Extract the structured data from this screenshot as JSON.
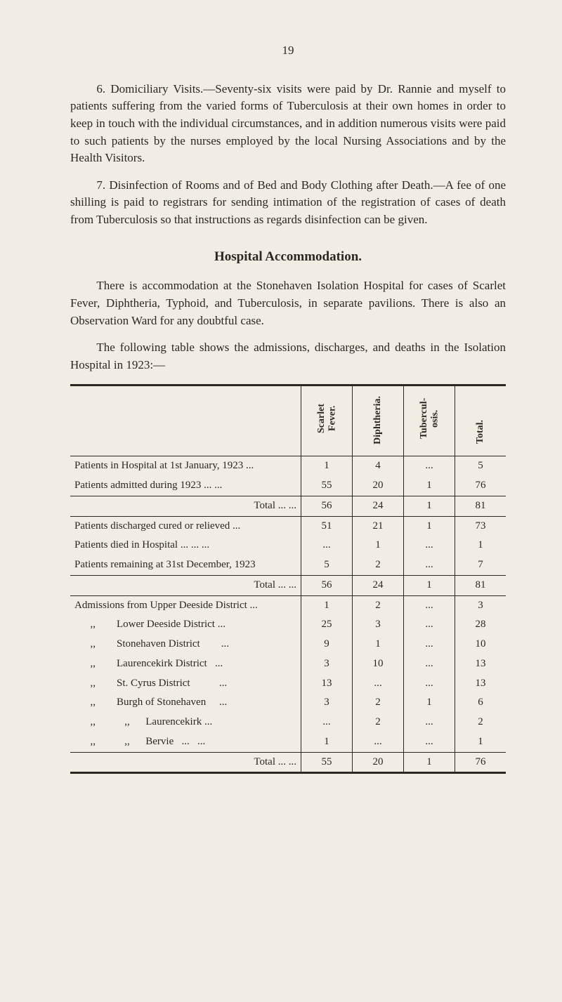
{
  "page_number": "19",
  "paragraphs": {
    "p1": "6. Domiciliary Visits.—Seventy-six visits were paid by Dr. Rannie and myself to patients suffering from the varied forms of Tuberculosis at their own homes in order to keep in touch with the individual circumstances, and in addition numerous visits were paid to such patients by the nurses employed by the local Nursing Associations and by the Health Visitors.",
    "p2": "7. Disinfection of Rooms and of Bed and Body Clothing after Death.—A fee of one shilling is paid to registrars for sending intimation of the registration of cases of death from Tuberculosis so that instructions as regards disinfection can be given.",
    "p3": "There is accommodation at the Stonehaven Isolation Hospital for cases of Scarlet Fever, Diphtheria, Typhoid, and Tuberculosis, in separate pavilions. There is also an Observation Ward for any doubtful case.",
    "p4": "The following table shows the admissions, discharges, and deaths in the Isolation Hospital in 1923:—"
  },
  "section_heading": "Hospital Accommodation.",
  "table": {
    "columns": {
      "c1": "Scarlet Fever.",
      "c2": "Diphtheria.",
      "c3": "Tubercul-osis.",
      "c4": "Total."
    },
    "rows": {
      "r1": {
        "label": "Patients in Hospital at 1st January, 1923 ...",
        "c1": "1",
        "c2": "4",
        "c3": "...",
        "c4": "5"
      },
      "r2": {
        "label": "Patients admitted during 1923      ...   ...",
        "c1": "55",
        "c2": "20",
        "c3": "1",
        "c4": "76"
      },
      "t1": {
        "label": "Total      ...   ...",
        "c1": "56",
        "c2": "24",
        "c3": "1",
        "c4": "81"
      },
      "r3": {
        "label": "Patients discharged cured or relieved       ...",
        "c1": "51",
        "c2": "21",
        "c3": "1",
        "c4": "73"
      },
      "r4": {
        "label": "Patients died in Hospital         ...   ...   ...",
        "c1": "...",
        "c2": "1",
        "c3": "...",
        "c4": "1"
      },
      "r5": {
        "label": "Patients remaining at 31st December, 1923",
        "c1": "5",
        "c2": "2",
        "c3": "...",
        "c4": "7"
      },
      "t2": {
        "label": "Total      ...   ...",
        "c1": "56",
        "c2": "24",
        "c3": "1",
        "c4": "81"
      },
      "a1": {
        "label": "Admissions from Upper Deeside District ...",
        "c1": "1",
        "c2": "2",
        "c3": "...",
        "c4": "3"
      },
      "a2": {
        "label": "      ,,        Lower Deeside District ...",
        "c1": "25",
        "c2": "3",
        "c3": "...",
        "c4": "28"
      },
      "a3": {
        "label": "      ,,        Stonehaven District        ...",
        "c1": "9",
        "c2": "1",
        "c3": "...",
        "c4": "10"
      },
      "a4": {
        "label": "      ,,        Laurencekirk District   ...",
        "c1": "3",
        "c2": "10",
        "c3": "...",
        "c4": "13"
      },
      "a5": {
        "label": "      ,,        St. Cyrus District           ...",
        "c1": "13",
        "c2": "...",
        "c3": "...",
        "c4": "13"
      },
      "a6": {
        "label": "      ,,        Burgh of Stonehaven     ...",
        "c1": "3",
        "c2": "2",
        "c3": "1",
        "c4": "6"
      },
      "a7": {
        "label": "      ,,           ,,      Laurencekirk ...",
        "c1": "...",
        "c2": "2",
        "c3": "...",
        "c4": "2"
      },
      "a8": {
        "label": "      ,,           ,,      Bervie   ...   ...",
        "c1": "1",
        "c2": "...",
        "c3": "...",
        "c4": "1"
      },
      "t3": {
        "label": "Total      ...   ...",
        "c1": "55",
        "c2": "20",
        "c3": "1",
        "c4": "76"
      }
    }
  }
}
